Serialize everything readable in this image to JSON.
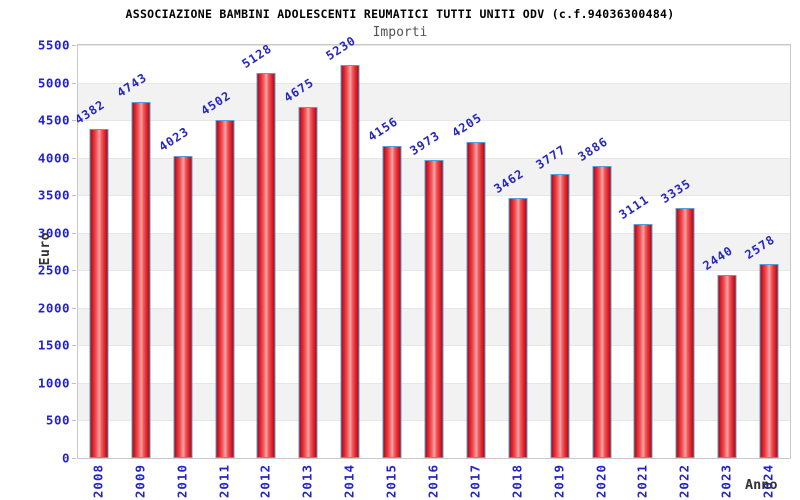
{
  "chart_data": {
    "type": "bar",
    "title": "ASSOCIAZIONE BAMBINI ADOLESCENTI REUMATICI TUTTI UNITI ODV (c.f.94036300484)",
    "subtitle": "Importi",
    "categories": [
      "2008",
      "2009",
      "2010",
      "2011",
      "2012",
      "2013",
      "2014",
      "2015",
      "2016",
      "2017",
      "2018",
      "2019",
      "2020",
      "2021",
      "2022",
      "2023",
      "2024"
    ],
    "values": [
      4382,
      4743,
      4023,
      4502,
      5128,
      4675,
      5230,
      4156,
      3973,
      4205,
      3462,
      3777,
      3886,
      3111,
      3335,
      2440,
      2578
    ],
    "xlabel": "Anno",
    "ylabel": "Euro",
    "ylim": [
      0,
      5500
    ],
    "ytick_step": 500,
    "yticks": [
      0,
      500,
      1000,
      1500,
      2000,
      2500,
      3000,
      3500,
      4000,
      4500,
      5000,
      5500
    ],
    "grid": "horizontal-alternating-bands",
    "legend": "none",
    "value_labels": "above-bars-rotated",
    "x_tick_rotation_deg": -90,
    "value_label_rotation_deg": -33
  },
  "colors": {
    "bar_edge_dark": "#9c0b13",
    "bar_mid_red": "#e73238",
    "bar_center_light": "#f9a3a5",
    "bar_outline_blue": "#5b9bd5",
    "tick_label_blue": "#2222cc",
    "value_label_blue": "#2727bd",
    "axis_title_dark": "#333333",
    "subtitle_gray": "#555555",
    "band_gray": "#f2f2f2",
    "plot_border": "#c9c9c9",
    "background": "#ffffff"
  }
}
